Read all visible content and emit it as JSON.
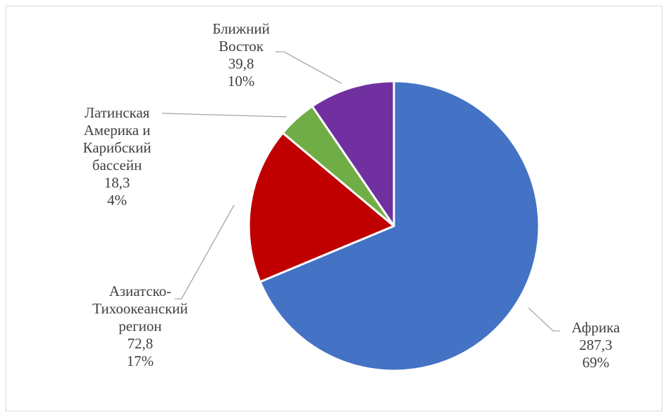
{
  "chart_data": {
    "type": "pie",
    "title": "",
    "start_angle_deg": 0,
    "direction": "clockwise",
    "slices": [
      {
        "label": [
          "Африка"
        ],
        "value": 287.3,
        "value_label": "287,3",
        "percent_label": "69%",
        "color": "#4472c4"
      },
      {
        "label": [
          "Азиатско-",
          "Тихоокеанский",
          "регион"
        ],
        "value": 72.8,
        "value_label": "72,8",
        "percent_label": "17%",
        "color": "#c00000"
      },
      {
        "label": [
          "Латинская",
          "Америка и",
          "Карибский",
          "бассейн"
        ],
        "value": 18.3,
        "value_label": "18,3",
        "percent_label": "4%",
        "color": "#70ad47"
      },
      {
        "label": [
          "Ближний",
          "Восток"
        ],
        "value": 39.8,
        "value_label": "39,8",
        "percent_label": "10%",
        "color": "#7030a0"
      }
    ],
    "slice_border_color": "#ffffff",
    "leader_line_color": "#a6a6a6"
  }
}
